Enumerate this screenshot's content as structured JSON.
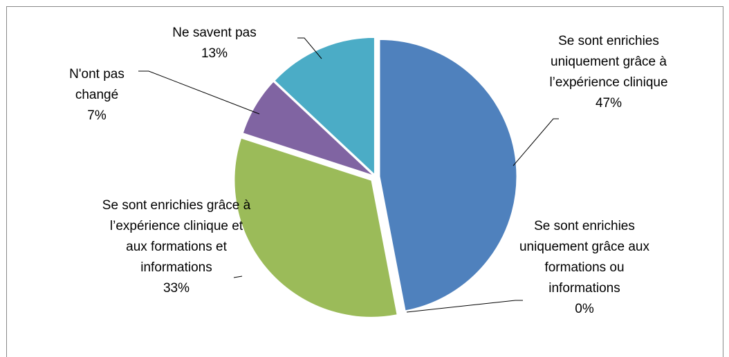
{
  "chart_data": {
    "type": "pie",
    "categories": [
      "Se sont enrichies uniquement grâce à l’expérience clinique",
      "Se sont enrichies uniquement grâce aux formations ou informations",
      "Se sont enrichies grâce à l’expérience clinique et aux formations et informations",
      "N'ont pas changé",
      "Ne savent pas"
    ],
    "values": [
      47,
      0,
      33,
      7,
      13
    ],
    "value_labels": [
      "47%",
      "0%",
      "33%",
      "7%",
      "13%"
    ],
    "colors": [
      "#4f81bd",
      "#c0504d",
      "#9bbb59",
      "#8064a2",
      "#4bacc6"
    ]
  }
}
